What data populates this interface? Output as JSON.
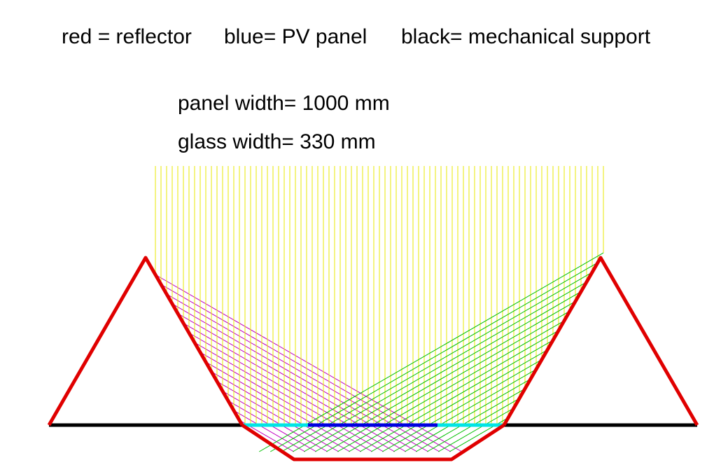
{
  "legend": [
    "red = reflector",
    "blue= PV panel",
    "black= mechanical support"
  ],
  "panel_width": "panel width= 1000  mm",
  "glass_width": "glass width= 330  mm"
}
